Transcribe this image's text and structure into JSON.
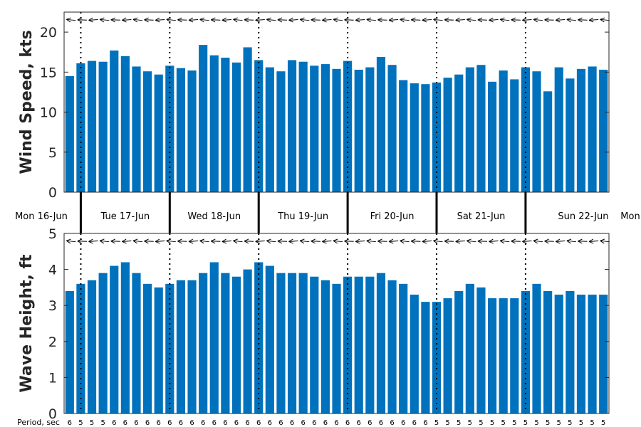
{
  "chart_data": [
    {
      "type": "bar",
      "ylabel": "Wind Speed, kts",
      "ylim": [
        0,
        22.5
      ],
      "yticks": [
        0,
        5,
        10,
        15,
        20
      ],
      "color": "#0072BD",
      "values": [
        14.5,
        16.1,
        16.4,
        16.3,
        17.7,
        17.0,
        15.7,
        15.1,
        14.7,
        15.8,
        15.5,
        15.2,
        18.4,
        17.1,
        16.8,
        16.2,
        18.1,
        16.5,
        15.6,
        15.1,
        16.5,
        16.3,
        15.8,
        16.0,
        15.4,
        16.4,
        15.3,
        15.6,
        16.9,
        15.9,
        14.0,
        13.6,
        13.5,
        13.7,
        14.3,
        14.7,
        15.6,
        15.9,
        13.8,
        15.2,
        14.1,
        15.6,
        15.1,
        12.6,
        15.6,
        14.2,
        15.4,
        15.7,
        15.3
      ],
      "arrows_note": "direction arrows shown above each bar"
    },
    {
      "type": "bar",
      "ylabel": "Wave Height, ft",
      "ylim": [
        0,
        5
      ],
      "yticks": [
        0,
        1,
        2,
        3,
        4,
        5
      ],
      "color": "#0072BD",
      "values": [
        3.4,
        3.6,
        3.7,
        3.9,
        4.1,
        4.2,
        3.9,
        3.6,
        3.5,
        3.6,
        3.7,
        3.7,
        3.9,
        4.2,
        3.9,
        3.8,
        4.0,
        4.2,
        4.1,
        3.9,
        3.9,
        3.9,
        3.8,
        3.7,
        3.6,
        3.8,
        3.8,
        3.8,
        3.9,
        3.7,
        3.6,
        3.3,
        3.1,
        3.1,
        3.2,
        3.4,
        3.6,
        3.5,
        3.2,
        3.2,
        3.2,
        3.4,
        3.6,
        3.4,
        3.3,
        3.4,
        3.3,
        3.3,
        3.3
      ]
    }
  ],
  "days": [
    "Mon 16-Jun",
    "Tue 17-Jun",
    "Wed 18-Jun",
    "Thu 19-Jun",
    "Fri 20-Jun",
    "Sat 21-Jun",
    "Sun 22-Jun",
    "Mon"
  ],
  "period_label": "Period, sec",
  "periods": [
    "6",
    "5",
    "5",
    "5",
    "6",
    "6",
    "6",
    "6",
    "6",
    "6",
    "6",
    "6",
    "6",
    "6",
    "6",
    "6",
    "6",
    "6",
    "6",
    "6",
    "6",
    "6",
    "6",
    "6",
    "6",
    "6",
    "6",
    "6",
    "6",
    "6",
    "6",
    "6",
    "6",
    "5",
    "5",
    "5",
    "5",
    "5",
    "5",
    "5",
    "5",
    "5",
    "5",
    "5",
    "5",
    "5",
    "5",
    "5",
    "5"
  ]
}
